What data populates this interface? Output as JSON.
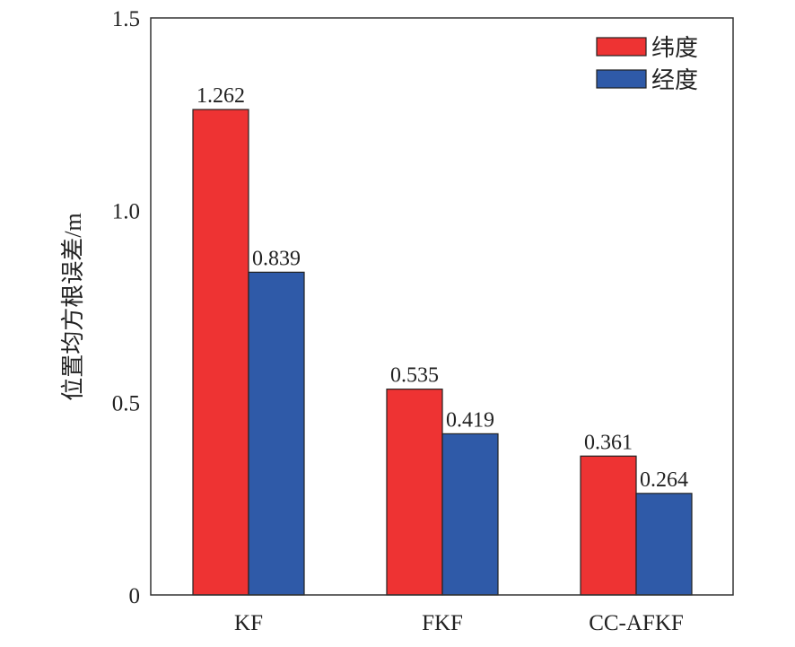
{
  "chart_data": {
    "type": "bar",
    "title": "",
    "xlabel": "",
    "ylabel": "位置均方根误差/m",
    "categories": [
      "KF",
      "FKF",
      "CC-AFKF"
    ],
    "series": [
      {
        "name": "纬度",
        "color": "#ee3333",
        "values": [
          1.262,
          0.535,
          0.361
        ]
      },
      {
        "name": "经度",
        "color": "#2f5aa8",
        "values": [
          0.839,
          0.419,
          0.264
        ]
      }
    ],
    "data_labels": [
      [
        "1.262",
        "0.535",
        "0.361"
      ],
      [
        "0.839",
        "0.419",
        "0.264"
      ]
    ],
    "ylim": [
      0,
      1.5
    ],
    "yticks": [
      0,
      0.5,
      1.0,
      1.5
    ],
    "ytick_labels": [
      "0",
      "0.5",
      "1.0",
      "1.5"
    ],
    "grid": false,
    "legend_position": "top-right"
  }
}
